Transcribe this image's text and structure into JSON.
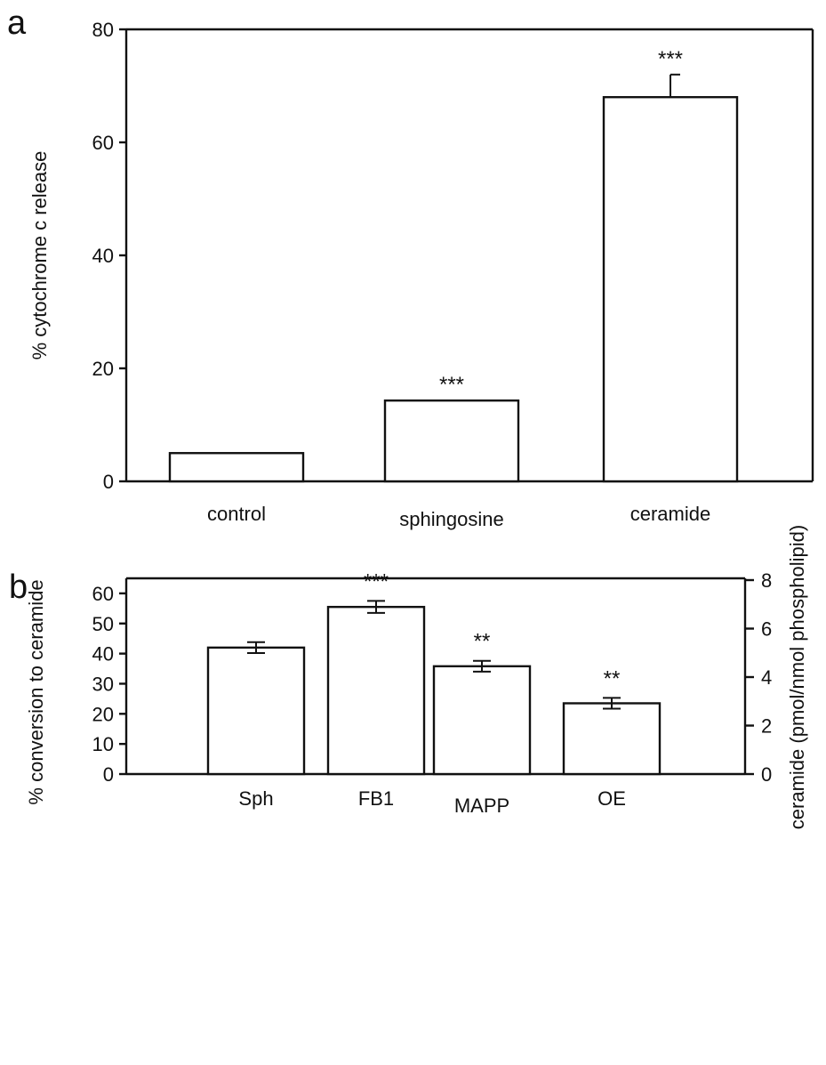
{
  "chart_data": [
    {
      "panel": "a",
      "type": "bar",
      "categories": [
        "control",
        "sphingosine",
        "ceramide"
      ],
      "values": [
        5,
        14.3,
        68
      ],
      "errors": [
        0,
        0,
        4
      ],
      "significance": [
        "",
        "***",
        "***"
      ],
      "ylabel": "% cytochrome c release",
      "ylim": [
        0,
        80
      ],
      "yticks": [
        0,
        20,
        40,
        60,
        80
      ],
      "grid": false,
      "colors": {
        "bar_fill": "#ffffff",
        "stroke": "#111111"
      }
    },
    {
      "panel": "b",
      "type": "bar",
      "categories": [
        "Sph",
        "FB1",
        "MAPP",
        "OE"
      ],
      "values": [
        42,
        55.5,
        35.8,
        23.5
      ],
      "errors": [
        1.8,
        2.0,
        1.8,
        1.8
      ],
      "significance": [
        "",
        "***",
        "**",
        "**"
      ],
      "ylabel": "% conversion to ceramide",
      "ylim": [
        0,
        65
      ],
      "yticks": [
        0,
        10,
        20,
        30,
        40,
        50,
        60
      ],
      "y2label": "ceramide (pmol/nmol phospholipid)",
      "y2lim": [
        0,
        8
      ],
      "y2ticks": [
        0,
        2,
        4,
        6,
        8
      ],
      "grid": false,
      "colors": {
        "bar_fill": "#ffffff",
        "stroke": "#111111"
      }
    }
  ]
}
